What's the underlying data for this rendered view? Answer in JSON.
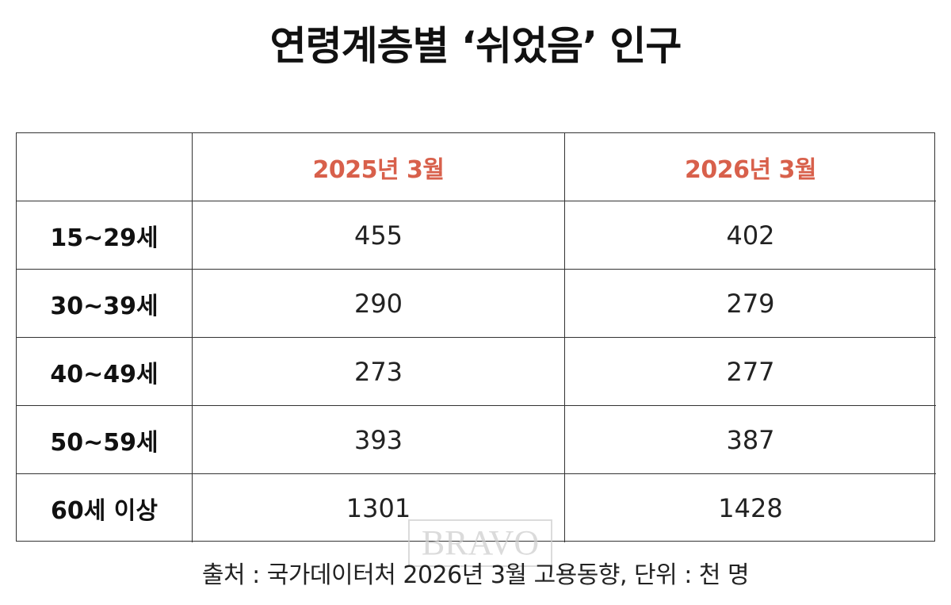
{
  "title": "연령계층별 ‘쉬었음’ 인구",
  "table": {
    "columns": [
      "2025년 3월",
      "2026년 3월"
    ],
    "rows": [
      [
        "15~29세",
        455,
        402
      ],
      [
        "30~39세",
        290,
        279
      ],
      [
        "40~49세",
        273,
        277
      ],
      [
        "50~59세",
        393,
        387
      ],
      [
        "60세 이상",
        1301,
        1428
      ]
    ]
  },
  "note": "출처 : 국가데이터처 2026년 3월 고용동향, 단위 : 천 명",
  "watermark": "BRAVO"
}
